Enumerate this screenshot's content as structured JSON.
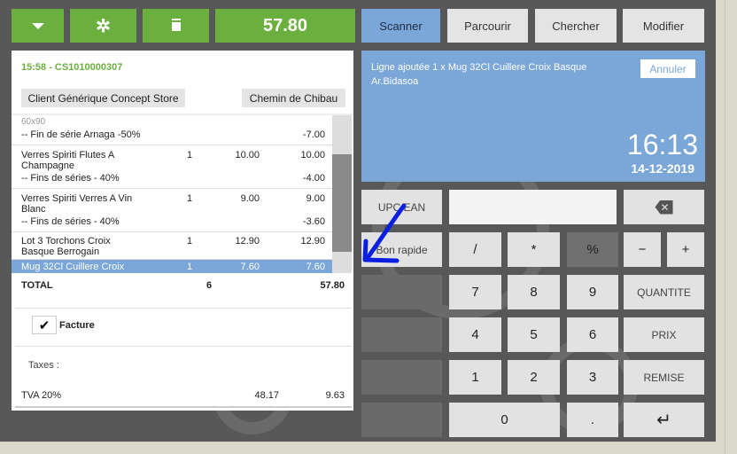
{
  "toolbar": {
    "dropdown_icon": "caret-down-icon",
    "star_icon": "asterisk-icon",
    "trash_icon": "trash-icon",
    "total": "57.80"
  },
  "nav": {
    "scanner": "Scanner",
    "browse": "Parcourir",
    "search": "Chercher",
    "modify": "Modifier",
    "active": "Scanner"
  },
  "ticket": {
    "header": "15:58 - CS1010000307",
    "client": "Client Générique Concept Store",
    "address": "Chemin de Chibau",
    "lines": [
      {
        "name": "60x90",
        "discount": "-- Fin de série Arnaga -50%",
        "qty": "",
        "price": "",
        "total": "",
        "discount_total": "-7.00"
      },
      {
        "name": "Verres Spiriti Flutes A Champagne",
        "discount": "-- Fins de séries - 40%",
        "qty": "1",
        "price": "10.00",
        "total": "10.00",
        "discount_total": "-4.00"
      },
      {
        "name": "Verres Spiriti Verres A Vin Blanc",
        "discount": "-- Fins de séries - 40%",
        "qty": "1",
        "price": "9.00",
        "total": "9.00",
        "discount_total": "-3.60"
      },
      {
        "name": "Lot 3 Torchons Croix Basque Berrogain",
        "discount": "",
        "qty": "1",
        "price": "12.90",
        "total": "12.90",
        "discount_total": ""
      },
      {
        "name": "Mug 32Cl Cuillere Croix",
        "discount": "",
        "qty": "1",
        "price": "7.60",
        "total": "7.60",
        "discount_total": "",
        "selected": true
      }
    ],
    "total_label": "TOTAL",
    "total_qty": "6",
    "total_amount": "57.80",
    "invoice_label": "Facture",
    "invoice_checked": true,
    "taxes_label": "Taxes :",
    "tax": {
      "name": "TVA 20%",
      "base": "48.17",
      "amount": "9.63"
    }
  },
  "info": {
    "message": "Ligne ajoutée 1 x Mug 32Cl Cuillere Croix Basque Ar.Bidasoa",
    "cancel": "Annuler",
    "time": "16:13",
    "date": "14-12-2019"
  },
  "keypad": {
    "upc": "UPC/EAN",
    "input_value": "",
    "backspace_icon": "backspace-icon",
    "quick": "Bon rapide",
    "divide": "/",
    "multiply": "*",
    "percent": "%",
    "minus": "−",
    "plus": "+",
    "k7": "7",
    "k8": "8",
    "k9": "9",
    "quantity": "QUANTITE",
    "k4": "4",
    "k5": "5",
    "k6": "6",
    "price": "PRIX",
    "k1": "1",
    "k2": "2",
    "k3": "3",
    "discount": "REMISE",
    "k0": "0",
    "dot": ".",
    "enter_icon": "enter-icon"
  },
  "colors": {
    "green": "#6bb03e",
    "blue": "#7aa6d8",
    "annotation": "#0a1fe0"
  }
}
